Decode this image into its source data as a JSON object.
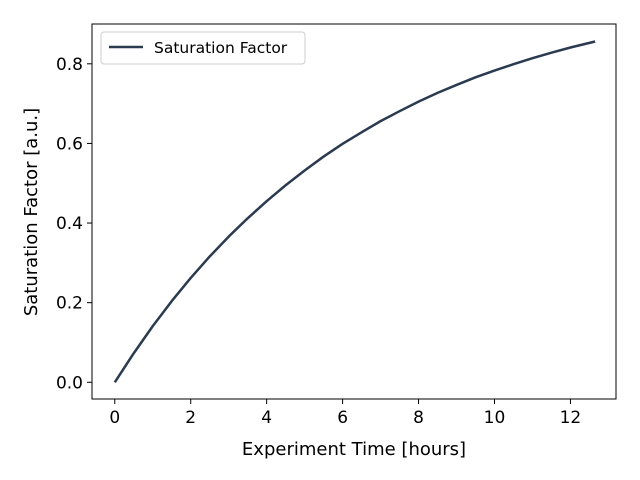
{
  "chart_data": {
    "type": "line",
    "xlabel": "Experiment Time [hours]",
    "ylabel": "Saturation Factor [a.u.]",
    "xlim": [
      -0.6,
      13.2
    ],
    "ylim": [
      -0.042,
      0.9
    ],
    "x_ticks": [
      0,
      2,
      4,
      6,
      8,
      10,
      12
    ],
    "x_tick_labels": [
      "0",
      "2",
      "4",
      "6",
      "8",
      "10",
      "12"
    ],
    "y_ticks": [
      0.0,
      0.2,
      0.4,
      0.6,
      0.8
    ],
    "y_tick_labels": [
      "0.0",
      "0.2",
      "0.4",
      "0.6",
      "0.8"
    ],
    "grid": false,
    "legend_position": "top-left",
    "series": [
      {
        "name": "Saturation Factor",
        "color": "#2b3b4f",
        "x": [
          0,
          0.5,
          1,
          1.5,
          2,
          2.5,
          3,
          3.5,
          4,
          4.5,
          5,
          5.5,
          6,
          6.5,
          7,
          7.5,
          8,
          8.5,
          9,
          9.5,
          10,
          10.5,
          11,
          11.5,
          12,
          12.65
        ],
        "y": [
          0.0,
          0.073,
          0.141,
          0.204,
          0.262,
          0.316,
          0.366,
          0.412,
          0.455,
          0.495,
          0.532,
          0.567,
          0.599,
          0.628,
          0.656,
          0.681,
          0.705,
          0.727,
          0.747,
          0.766,
          0.783,
          0.799,
          0.814,
          0.828,
          0.841,
          0.856
        ]
      }
    ]
  }
}
